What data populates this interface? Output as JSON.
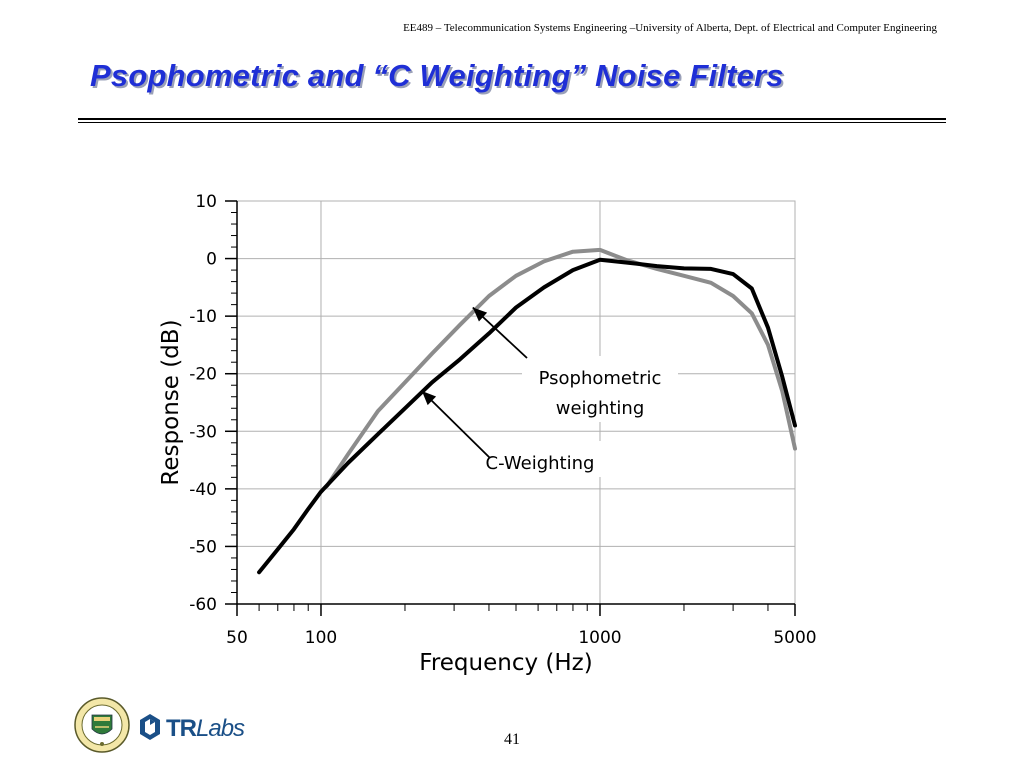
{
  "header": {
    "course_line": "EE489 – Telecommunication Systems Engineering –University of Alberta, Dept. of Electrical and Computer Engineering"
  },
  "slide": {
    "title": "Psophometric and “C Weighting” Noise Filters",
    "page_number": "41"
  },
  "logos": {
    "seal_icon": "university-of-alberta-seal-icon",
    "trlabs_brand_bold": "TR",
    "trlabs_brand_italic": "Labs"
  },
  "colors": {
    "title": "#1f2fd6",
    "c_weighting": "#000000",
    "psophometric": "#8c8c8c",
    "grid": "#b0b0b0"
  },
  "chart_data": {
    "type": "line",
    "title": "",
    "xlabel": "Frequency (Hz)",
    "ylabel": "Response (dB)",
    "x_scale": "log",
    "xlim": [
      50,
      5000
    ],
    "ylim": [
      -60,
      10
    ],
    "x_tick_labels": [
      {
        "value": 50,
        "label": "50"
      },
      {
        "value": 100,
        "label": "100"
      },
      {
        "value": 1000,
        "label": "1000"
      },
      {
        "value": 5000,
        "label": "5000"
      }
    ],
    "y_ticks": [
      10,
      0,
      -10,
      -20,
      -30,
      -40,
      -50,
      -60
    ],
    "y_tick_labels": [
      "10",
      "0",
      "-10",
      "-20",
      "-30",
      "-40",
      "-50",
      "-60"
    ],
    "grid": true,
    "series": [
      {
        "name": "C-Weighting",
        "color": "#000000",
        "x": [
          60,
          70,
          80,
          90,
          100,
          125,
          160,
          200,
          250,
          315,
          400,
          500,
          630,
          800,
          1000,
          1250,
          1600,
          2000,
          2500,
          3000,
          3500,
          4000,
          4500,
          5000
        ],
        "y": [
          -54.5,
          -50.5,
          -47,
          -43.5,
          -40.5,
          -35.5,
          -30.5,
          -26,
          -21.5,
          -17.5,
          -13,
          -8.5,
          -5,
          -2,
          -0.2,
          -0.7,
          -1.3,
          -1.7,
          -1.8,
          -2.7,
          -5.2,
          -12,
          -20.5,
          -29
        ]
      },
      {
        "name": "Psophometric weighting",
        "color": "#8c8c8c",
        "x": [
          105,
          125,
          160,
          200,
          250,
          315,
          400,
          500,
          630,
          800,
          1000,
          1250,
          1600,
          2000,
          2500,
          3000,
          3500,
          4000,
          4500,
          5000
        ],
        "y": [
          -39.5,
          -34,
          -26.5,
          -21.5,
          -16.5,
          -11.5,
          -6.5,
          -3,
          -0.5,
          1.2,
          1.5,
          -0.3,
          -1.8,
          -3,
          -4.2,
          -6.5,
          -9.5,
          -15,
          -23,
          -33
        ]
      }
    ],
    "annotations": [
      {
        "lines": [
          "Psophometric",
          "weighting"
        ],
        "points_to": "Psophometric weighting",
        "arrow_to": {
          "x": 350,
          "y": -8.5
        }
      },
      {
        "lines": [
          "C-Weighting"
        ],
        "points_to": "C-Weighting",
        "arrow_to": {
          "x": 230,
          "y": -23
        }
      }
    ]
  }
}
